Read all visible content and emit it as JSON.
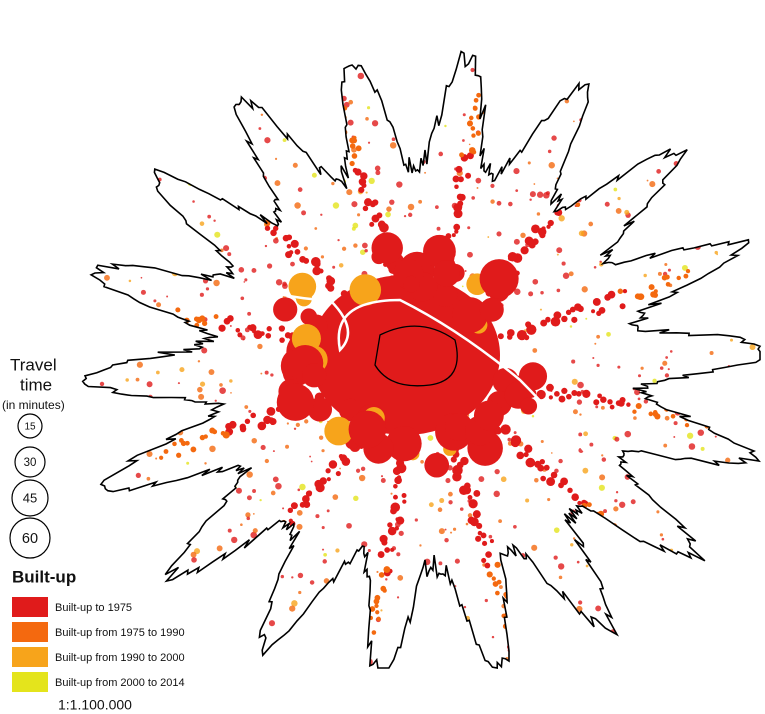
{
  "legend_travel": {
    "title": "Travel",
    "title2": "time",
    "subtitle": "(in minutes)",
    "items": [
      "15",
      "30",
      "45",
      "60"
    ]
  },
  "legend_builtup": {
    "title": "Built-up",
    "items": [
      {
        "label": "Built-up to 1975",
        "color": "#e01b1b"
      },
      {
        "label": "Built-up from 1975 to 1990",
        "color": "#f4690f"
      },
      {
        "label": "Built-up from 1990 to 2000",
        "color": "#f7a41b"
      },
      {
        "label": "Built-up from 2000 to 2014",
        "color": "#e4e41c"
      }
    ]
  },
  "scale": "1:1.100.000"
}
